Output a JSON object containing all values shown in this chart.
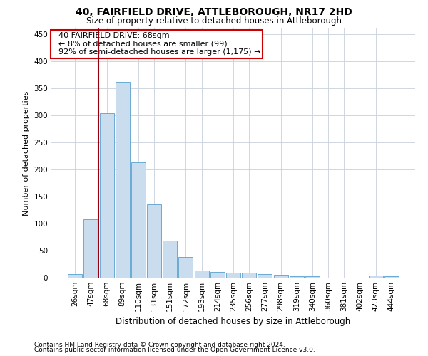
{
  "title": "40, FAIRFIELD DRIVE, ATTLEBOROUGH, NR17 2HD",
  "subtitle": "Size of property relative to detached houses in Attleborough",
  "xlabel": "Distribution of detached houses by size in Attleborough",
  "ylabel": "Number of detached properties",
  "footnote1": "Contains HM Land Registry data © Crown copyright and database right 2024.",
  "footnote2": "Contains public sector information licensed under the Open Government Licence v3.0.",
  "bar_color": "#c9ddef",
  "bar_edge_color": "#6aaad4",
  "grid_color": "#c8d0dc",
  "annotation_box_color": "#cc0000",
  "vline_color": "#99000d",
  "categories": [
    "26sqm",
    "47sqm",
    "68sqm",
    "89sqm",
    "110sqm",
    "131sqm",
    "151sqm",
    "172sqm",
    "193sqm",
    "214sqm",
    "235sqm",
    "256sqm",
    "277sqm",
    "298sqm",
    "319sqm",
    "340sqm",
    "360sqm",
    "381sqm",
    "402sqm",
    "423sqm",
    "444sqm"
  ],
  "values": [
    7,
    108,
    303,
    362,
    213,
    136,
    68,
    38,
    13,
    10,
    9,
    9,
    6,
    5,
    2,
    2,
    0,
    0,
    0,
    4,
    2
  ],
  "annotation_line1": "  40 FAIRFIELD DRIVE: 68sqm",
  "annotation_line2": "  ← 8% of detached houses are smaller (99)",
  "annotation_line3": "  92% of semi-detached houses are larger (1,175) →",
  "vline_x_index": 1.5,
  "ylim": [
    0,
    460
  ],
  "yticks": [
    0,
    50,
    100,
    150,
    200,
    250,
    300,
    350,
    400,
    450
  ],
  "background_color": "#ffffff",
  "title_fontsize": 10,
  "subtitle_fontsize": 8.5,
  "ylabel_fontsize": 8,
  "xlabel_fontsize": 8.5,
  "tick_fontsize": 7.5,
  "annotation_fontsize": 8,
  "footnote_fontsize": 6.5
}
